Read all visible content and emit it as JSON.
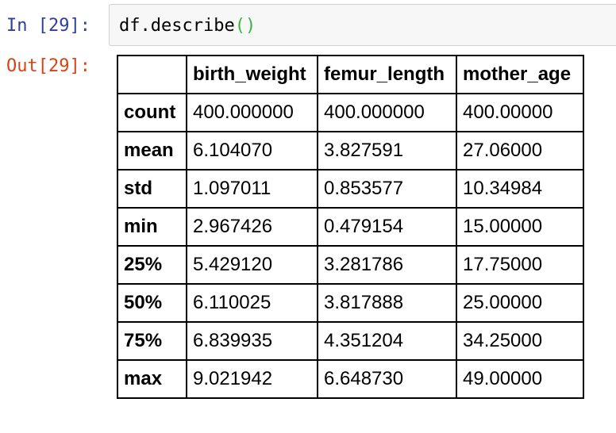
{
  "input_prompt": "In [29]:",
  "output_prompt": "Out[29]:",
  "code": {
    "text": "df.describe",
    "parens": "()"
  },
  "table": {
    "corner_header": "",
    "columns": [
      "birth_weight",
      "femur_length",
      "mother_age"
    ],
    "rows": [
      {
        "label": "count",
        "values": [
          "400.000000",
          "400.000000",
          "400.00000"
        ]
      },
      {
        "label": "mean",
        "values": [
          "6.104070",
          "3.827591",
          "27.06000"
        ]
      },
      {
        "label": "std",
        "values": [
          "1.097011",
          "0.853577",
          "10.34984"
        ]
      },
      {
        "label": "min",
        "values": [
          "2.967426",
          "0.479154",
          "15.00000"
        ]
      },
      {
        "label": "25%",
        "values": [
          "5.429120",
          "3.281786",
          "17.75000"
        ]
      },
      {
        "label": "50%",
        "values": [
          "6.110025",
          "3.817888",
          "25.00000"
        ]
      },
      {
        "label": "75%",
        "values": [
          "6.839935",
          "4.351204",
          "34.25000"
        ]
      },
      {
        "label": "max",
        "values": [
          "9.021942",
          "6.648730",
          "49.00000"
        ]
      }
    ]
  },
  "colors": {
    "input_prompt": "#303f9f",
    "output_prompt": "#d84315",
    "input_background": "#f7f7f7",
    "parens": "#3bb33b"
  }
}
